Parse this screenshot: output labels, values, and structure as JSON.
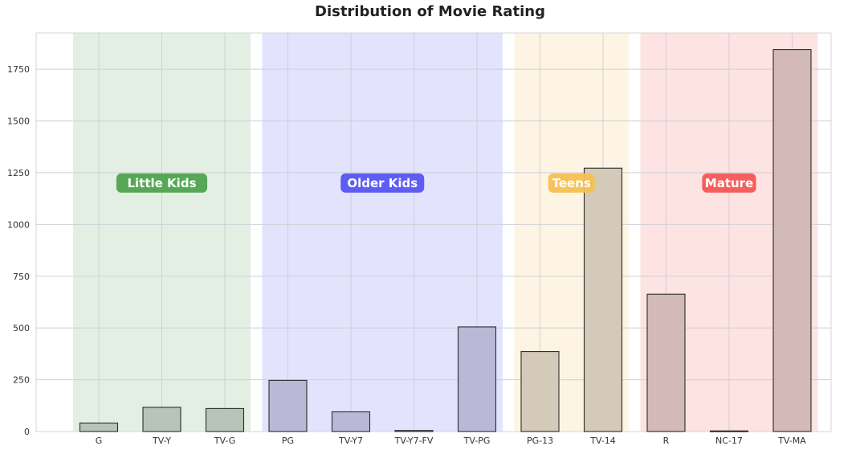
{
  "chart_data": {
    "type": "bar",
    "title": "Distribution of Movie Rating",
    "xlabel": "",
    "ylabel": "",
    "categories": [
      "G",
      "TV-Y",
      "TV-G",
      "PG",
      "TV-Y7",
      "TV-Y7-FV",
      "TV-PG",
      "PG-13",
      "TV-14",
      "R",
      "NC-17",
      "TV-MA"
    ],
    "values": [
      41,
      117,
      111,
      247,
      95,
      5,
      505,
      386,
      1272,
      663,
      3,
      1845
    ],
    "ylim": [
      0,
      1925
    ],
    "yticks": [
      0,
      250,
      500,
      750,
      1000,
      1250,
      1500,
      1750
    ],
    "grid": true,
    "groups": [
      {
        "label": "Little Kids",
        "categories": [
          "G",
          "TV-Y",
          "TV-G"
        ],
        "band_color": "#e4efe4",
        "bar_color": "#b9c4b9",
        "label_color": "#4ea34e"
      },
      {
        "label": "Older Kids",
        "categories": [
          "PG",
          "TV-Y7",
          "TV-Y7-FV",
          "TV-PG"
        ],
        "band_color": "#e3e3fe",
        "bar_color": "#b9b9d6",
        "label_color": "#5555f3"
      },
      {
        "label": "Teens",
        "categories": [
          "PG-13",
          "TV-14"
        ],
        "band_color": "#fdf4e4",
        "bar_color": "#d4cab9",
        "label_color": "#f6c053"
      },
      {
        "label": "Mature",
        "categories": [
          "R",
          "NC-17",
          "TV-MA"
        ],
        "band_color": "#fee3e3",
        "bar_color": "#d4b9b9",
        "label_color": "#f55656"
      }
    ],
    "group_label_value": 1200
  }
}
